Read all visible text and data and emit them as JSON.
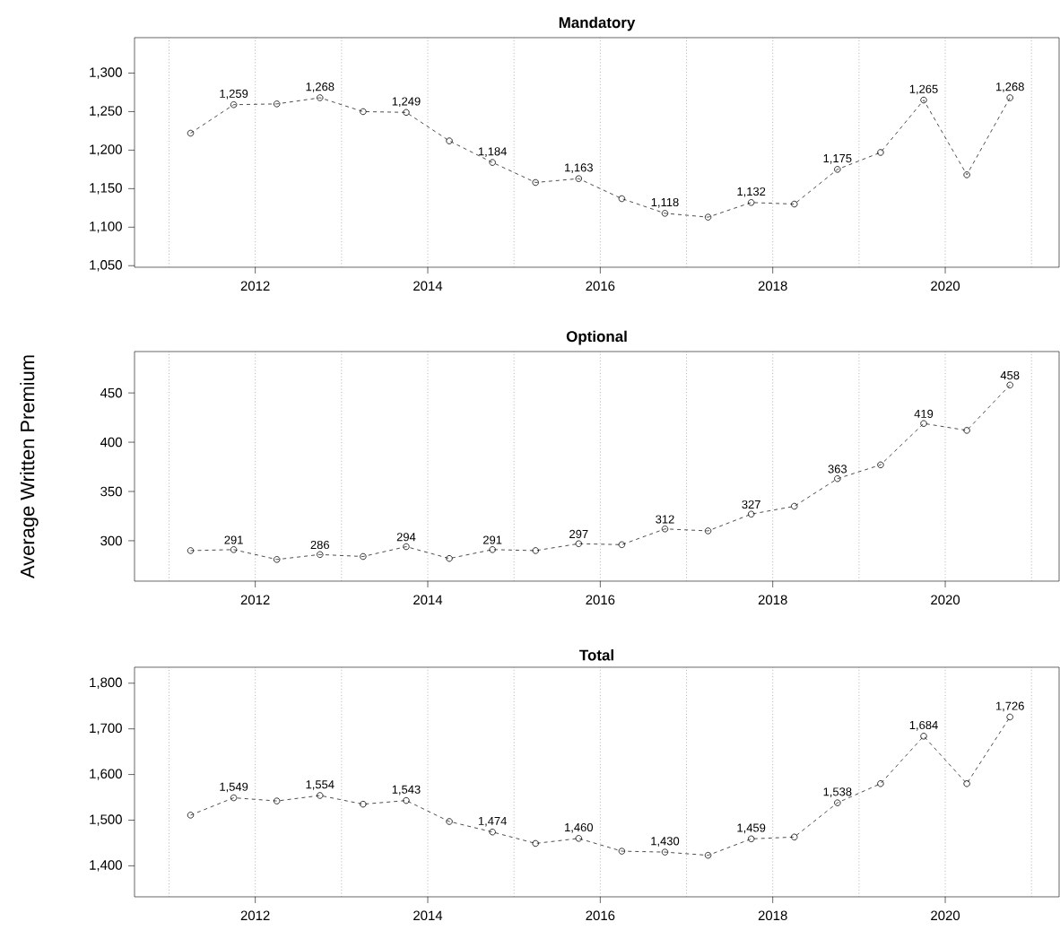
{
  "chart_data": [
    {
      "type": "line",
      "title": "Mandatory",
      "color": "#000000",
      "marker": "circle",
      "line_style": "dashed",
      "x": [
        2011.25,
        2011.75,
        2012.25,
        2012.75,
        2013.25,
        2013.75,
        2014.25,
        2014.75,
        2015.25,
        2015.75,
        2016.25,
        2016.75,
        2017.25,
        2017.75,
        2018.25,
        2018.75,
        2019.25,
        2019.75,
        2020.25,
        2020.75
      ],
      "values": [
        1222,
        1259,
        1260,
        1268,
        1250,
        1249,
        1212,
        1184,
        1158,
        1163,
        1137,
        1118,
        1113,
        1132,
        1130,
        1175,
        1197,
        1265,
        1168,
        1268
      ],
      "value_labels": [
        null,
        "1,259",
        null,
        "1,268",
        null,
        "1,249",
        null,
        "1,184",
        null,
        "1,163",
        null,
        "1,118",
        null,
        "1,132",
        null,
        "1,175",
        null,
        "1,265",
        null,
        "1,268"
      ],
      "xlim": [
        2010.6,
        2021.32
      ],
      "ylim": [
        1048,
        1346
      ],
      "xticks": [
        2012,
        2014,
        2016,
        2018,
        2020
      ],
      "yticks": [
        {
          "value": 1050,
          "label": "1,050"
        },
        {
          "value": 1100,
          "label": "1,100"
        },
        {
          "value": 1150,
          "label": "1,150"
        },
        {
          "value": 1200,
          "label": "1,200"
        },
        {
          "value": 1250,
          "label": "1,250"
        },
        {
          "value": 1300,
          "label": "1,300"
        }
      ],
      "ref_lines": [
        {
          "axis": "x",
          "value": 2011,
          "color": "#808080",
          "line_style": "dotted"
        },
        {
          "axis": "x",
          "value": 2012,
          "color": "#808080",
          "line_style": "dotted"
        },
        {
          "axis": "x",
          "value": 2013,
          "color": "#808080",
          "line_style": "dotted"
        },
        {
          "axis": "x",
          "value": 2014,
          "color": "#808080",
          "line_style": "dotted"
        },
        {
          "axis": "x",
          "value": 2015,
          "color": "#808080",
          "line_style": "dotted"
        },
        {
          "axis": "x",
          "value": 2016,
          "color": "#808080",
          "line_style": "dotted"
        },
        {
          "axis": "x",
          "value": 2017,
          "color": "#808080",
          "line_style": "dotted"
        },
        {
          "axis": "x",
          "value": 2018,
          "color": "#808080",
          "line_style": "dotted"
        },
        {
          "axis": "x",
          "value": 2019,
          "color": "#808080",
          "line_style": "dotted"
        },
        {
          "axis": "x",
          "value": 2020,
          "color": "#808080",
          "line_style": "dotted"
        },
        {
          "axis": "x",
          "value": 2021,
          "color": "#808080",
          "line_style": "dotted"
        }
      ]
    },
    {
      "type": "line",
      "title": "Optional",
      "ylabel": "Average Written Premium",
      "color": "#000000",
      "marker": "circle",
      "line_style": "dashed",
      "x": [
        2011.25,
        2011.75,
        2012.25,
        2012.75,
        2013.25,
        2013.75,
        2014.25,
        2014.75,
        2015.25,
        2015.75,
        2016.25,
        2016.75,
        2017.25,
        2017.75,
        2018.25,
        2018.75,
        2019.25,
        2019.75,
        2020.25,
        2020.75
      ],
      "values": [
        290,
        291,
        281,
        286,
        284,
        294,
        282,
        291,
        290,
        297,
        296,
        312,
        310,
        327,
        335,
        363,
        377,
        419,
        412,
        458
      ],
      "value_labels": [
        null,
        "291",
        null,
        "286",
        null,
        "294",
        null,
        "291",
        null,
        "297",
        null,
        "312",
        null,
        "327",
        null,
        "363",
        null,
        "419",
        null,
        "458"
      ],
      "xlim": [
        2010.6,
        2021.32
      ],
      "ylim": [
        259,
        492
      ],
      "xticks": [
        2012,
        2014,
        2016,
        2018,
        2020
      ],
      "yticks": [
        300,
        350,
        400,
        450
      ],
      "ref_lines": [
        {
          "axis": "x",
          "value": 2011,
          "color": "#808080",
          "line_style": "dotted"
        },
        {
          "axis": "x",
          "value": 2012,
          "color": "#808080",
          "line_style": "dotted"
        },
        {
          "axis": "x",
          "value": 2013,
          "color": "#808080",
          "line_style": "dotted"
        },
        {
          "axis": "x",
          "value": 2014,
          "color": "#808080",
          "line_style": "dotted"
        },
        {
          "axis": "x",
          "value": 2015,
          "color": "#808080",
          "line_style": "dotted"
        },
        {
          "axis": "x",
          "value": 2016,
          "color": "#808080",
          "line_style": "dotted"
        },
        {
          "axis": "x",
          "value": 2017,
          "color": "#808080",
          "line_style": "dotted"
        },
        {
          "axis": "x",
          "value": 2018,
          "color": "#808080",
          "line_style": "dotted"
        },
        {
          "axis": "x",
          "value": 2019,
          "color": "#808080",
          "line_style": "dotted"
        },
        {
          "axis": "x",
          "value": 2020,
          "color": "#808080",
          "line_style": "dotted"
        },
        {
          "axis": "x",
          "value": 2021,
          "color": "#808080",
          "line_style": "dotted"
        }
      ]
    },
    {
      "type": "line",
      "title": "Total",
      "color": "#000000",
      "marker": "circle",
      "line_style": "dashed",
      "x": [
        2011.25,
        2011.75,
        2012.25,
        2012.75,
        2013.25,
        2013.75,
        2014.25,
        2014.75,
        2015.25,
        2015.75,
        2016.25,
        2016.75,
        2017.25,
        2017.75,
        2018.25,
        2018.75,
        2019.25,
        2019.75,
        2020.25,
        2020.75
      ],
      "values": [
        1511,
        1549,
        1542,
        1554,
        1535,
        1543,
        1497,
        1474,
        1449,
        1460,
        1432,
        1430,
        1423,
        1459,
        1463,
        1538,
        1580,
        1684,
        1580,
        1726
      ],
      "value_labels": [
        null,
        "1,549",
        null,
        "1,554",
        null,
        "1,543",
        null,
        "1,474",
        null,
        "1,460",
        null,
        "1,430",
        null,
        "1,459",
        null,
        "1,538",
        null,
        "1,684",
        null,
        "1,726"
      ],
      "xlim": [
        2010.6,
        2021.32
      ],
      "ylim": [
        1332,
        1835
      ],
      "xticks": [
        2012,
        2014,
        2016,
        2018,
        2020
      ],
      "yticks": [
        {
          "value": 1400,
          "label": "1,400"
        },
        {
          "value": 1500,
          "label": "1,500"
        },
        {
          "value": 1600,
          "label": "1,600"
        },
        {
          "value": 1700,
          "label": "1,700"
        },
        {
          "value": 1800,
          "label": "1,800"
        }
      ],
      "ref_lines": [
        {
          "axis": "x",
          "value": 2011,
          "color": "#808080",
          "line_style": "dotted"
        },
        {
          "axis": "x",
          "value": 2012,
          "color": "#808080",
          "line_style": "dotted"
        },
        {
          "axis": "x",
          "value": 2013,
          "color": "#808080",
          "line_style": "dotted"
        },
        {
          "axis": "x",
          "value": 2014,
          "color": "#808080",
          "line_style": "dotted"
        },
        {
          "axis": "x",
          "value": 2015,
          "color": "#808080",
          "line_style": "dotted"
        },
        {
          "axis": "x",
          "value": 2016,
          "color": "#808080",
          "line_style": "dotted"
        },
        {
          "axis": "x",
          "value": 2017,
          "color": "#808080",
          "line_style": "dotted"
        },
        {
          "axis": "x",
          "value": 2018,
          "color": "#808080",
          "line_style": "dotted"
        },
        {
          "axis": "x",
          "value": 2019,
          "color": "#808080",
          "line_style": "dotted"
        },
        {
          "axis": "x",
          "value": 2020,
          "color": "#808080",
          "line_style": "dotted"
        },
        {
          "axis": "x",
          "value": 2021,
          "color": "#808080",
          "line_style": "dotted"
        }
      ]
    }
  ]
}
